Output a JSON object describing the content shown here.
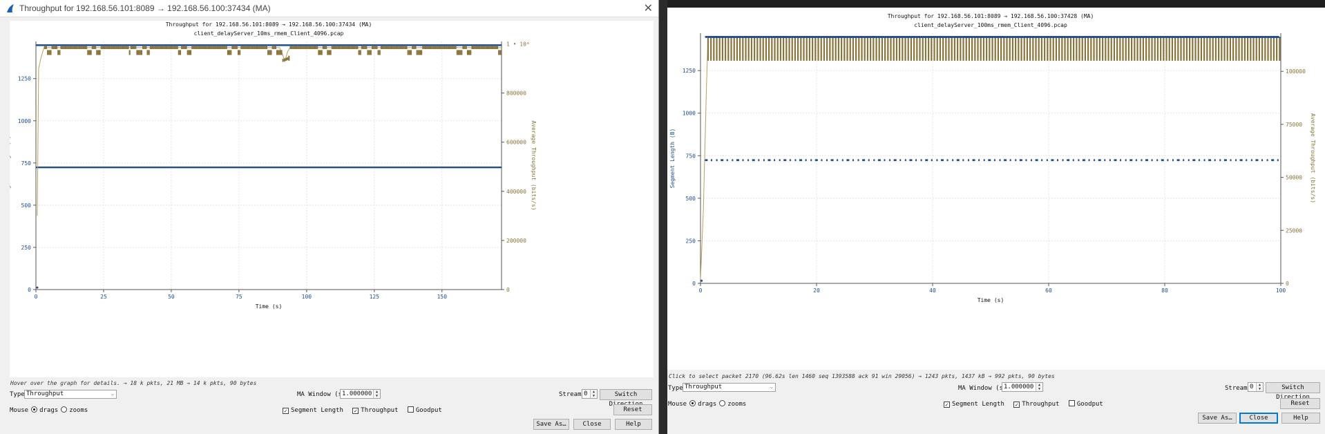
{
  "colors": {
    "segment": "#1f4e8f",
    "throughput": "#8a7338",
    "throughput_line": "#b8a062",
    "grid": "#e4e4e4"
  },
  "left": {
    "window_title": "Throughput for 192.168.56.101:8089 → 192.168.56.100:37434 (MA)",
    "hint": "Hover over the graph for details. → 18 k pkts, 21 MB → 14 k pkts, 90 bytes",
    "controls": {
      "type_label": "Type",
      "type_value": "Throughput",
      "ma_label": "MA Window (s)",
      "ma_value": "1.000000",
      "stream_label": "Stream",
      "stream_value": "0",
      "switch_label": "Switch Direction",
      "mouse_label": "Mouse",
      "drags_label": "drags",
      "zooms_label": "zooms",
      "seglen_label": "Segment Length",
      "throughput_label": "Throughput",
      "goodput_label": "Goodput",
      "reset_label": "Reset",
      "saveas_label": "Save As…",
      "close_label": "Close",
      "help_label": "Help"
    }
  },
  "right": {
    "hint": "Click to select packet 2170 (96.62s len 1460 seq 1393588 ack 91 win 29056) → 1243 pkts, 1437 kB → 992 pkts, 90 bytes",
    "controls": {
      "type_label": "Type",
      "type_value": "Throughput",
      "ma_label": "MA Window (s)",
      "ma_value": "1.000000",
      "stream_label": "Stream",
      "stream_value": "0",
      "switch_label": "Switch Direction",
      "mouse_label": "Mouse",
      "drags_label": "drags",
      "zooms_label": "zooms",
      "seglen_label": "Segment Length",
      "throughput_label": "Throughput",
      "goodput_label": "Goodput",
      "reset_label": "Reset",
      "saveas_label": "Save As…",
      "close_label": "Close",
      "help_label": "Help"
    }
  },
  "chart_data": [
    {
      "type": "scatter",
      "title": "Throughput for 192.168.56.101:8089 → 192.168.56.100:37434 (MA)",
      "subtitle": "client_delayServer_10ms_rmem_Client_4096.pcap",
      "xlabel": "Time (s)",
      "ylabel": "Segment Length (B)",
      "y2label": "Average Throughput (bits/s)",
      "xlim": [
        0,
        172
      ],
      "ylim": [
        0,
        1470
      ],
      "y2lim": [
        0,
        1010000
      ],
      "xticks": [
        0,
        25,
        50,
        75,
        100,
        125,
        150
      ],
      "yticks": [
        0,
        250,
        500,
        750,
        1000,
        1250
      ],
      "y2ticks": [
        0,
        200000,
        400000,
        600000,
        800000
      ],
      "y2tick_labels": [
        "0",
        "200000",
        "400000",
        "600000",
        "800000"
      ],
      "y2_annotation": "1 • 10⁶",
      "grid": true,
      "series": [
        {
          "axis": "y",
          "style": "band",
          "levels": [
            1448,
            724
          ],
          "x": [
            0,
            172
          ]
        },
        {
          "axis": "y2",
          "style": "throughput",
          "x": [
            0.5,
            1,
            2,
            3,
            10,
            30,
            60,
            90,
            91,
            92,
            93,
            94,
            100,
            130,
            160,
            172
          ],
          "y": [
            300000,
            900000,
            950000,
            985000,
            985000,
            985000,
            985000,
            985000,
            960000,
            930000,
            970000,
            985000,
            985000,
            985000,
            985000,
            985000
          ]
        }
      ]
    },
    {
      "type": "scatter",
      "title": "Throughput for 192.168.56.101:8089 → 192.168.56.100:37428 (MA)",
      "subtitle": "client_delayServer_100ms_rmem_Client_4096.pcap",
      "xlabel": "Time (s)",
      "ylabel": "Segment Length (B)",
      "y2label": "Average Throughput (bits/s)",
      "xlim": [
        0,
        100
      ],
      "ylim": [
        0,
        1470
      ],
      "y2lim": [
        0,
        118000
      ],
      "xticks": [
        0,
        20,
        40,
        60,
        80,
        100
      ],
      "yticks": [
        0,
        250,
        500,
        750,
        1000,
        1250
      ],
      "y2ticks": [
        0,
        25000,
        50000,
        75000,
        100000
      ],
      "y2tick_labels": [
        "0",
        "25000",
        "50000",
        "75000",
        "100000"
      ],
      "grid": true,
      "series": [
        {
          "axis": "y",
          "style": "dots",
          "levels": [
            1448,
            724
          ],
          "x": [
            0,
            100
          ]
        },
        {
          "axis": "y2",
          "style": "oscillating",
          "x": [
            1.3,
            100
          ],
          "y_low": 105000,
          "y_high": 116000,
          "ramp_x": [
            0,
            0.5,
            1,
            1.3
          ],
          "ramp_y": [
            2000,
            35000,
            90000,
            116000
          ]
        }
      ]
    }
  ]
}
